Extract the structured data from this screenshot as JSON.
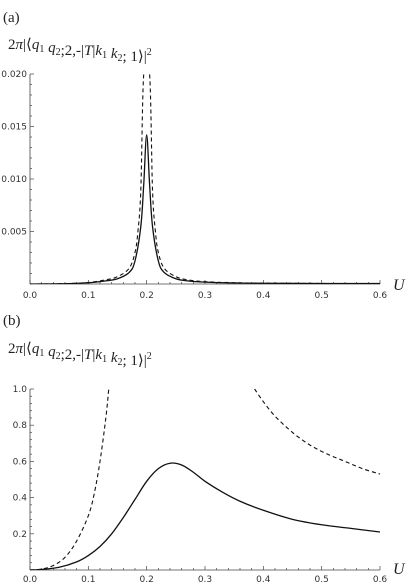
{
  "chart_data": [
    {
      "type": "line",
      "panel_label": "(a)",
      "ylabel": "2π|⟨q₁ q₂;2,-|T|k₁ k₂; 1⟩|²",
      "ylabel_parts": [
        "2",
        "π",
        "|⟨",
        "q",
        "1",
        " ",
        "q",
        "2",
        ";2,-|",
        "T",
        "|",
        "k",
        "1",
        " ",
        "k",
        "2",
        "; 1⟩|",
        "2"
      ],
      "xlabel": "U",
      "xlim": [
        0,
        0.6
      ],
      "ylim": [
        0,
        0.02
      ],
      "xticks": [
        0,
        0.1,
        0.2,
        0.3,
        0.4,
        0.5,
        0.6
      ],
      "xtick_labels": [
        "0.0",
        "0.1",
        "0.2",
        "0.3",
        "0.4",
        "0.5",
        "0.6"
      ],
      "yticks": [
        0.005,
        0.01,
        0.015,
        0.02
      ],
      "ytick_labels": [
        "0.005",
        "0.010",
        "0.015",
        "0.020"
      ],
      "series": [
        {
          "style": "solid",
          "x": [
            0,
            0.05,
            0.1,
            0.13,
            0.15,
            0.17,
            0.18,
            0.19,
            0.195,
            0.2,
            0.205,
            0.21,
            0.22,
            0.23,
            0.25,
            0.27,
            0.3,
            0.35,
            0.4,
            0.5,
            0.6
          ],
          "y": [
            0,
            2e-05,
            0.00012,
            0.0003,
            0.0005,
            0.0011,
            0.0022,
            0.0055,
            0.0095,
            0.0142,
            0.0095,
            0.0055,
            0.0022,
            0.0011,
            0.0005,
            0.0003,
            0.00018,
            0.0001,
            7e-05,
            5e-05,
            4e-05
          ]
        },
        {
          "style": "dashed",
          "x": [
            0,
            0.05,
            0.1,
            0.13,
            0.15,
            0.17,
            0.18,
            0.185,
            0.19,
            0.195,
            0.205,
            0.21,
            0.215,
            0.22,
            0.23,
            0.25,
            0.27,
            0.3,
            0.35,
            0.4,
            0.5,
            0.6
          ],
          "y": [
            0,
            2e-05,
            0.00014,
            0.0004,
            0.0007,
            0.0015,
            0.003,
            0.005,
            0.009,
            0.02,
            0.02,
            0.009,
            0.005,
            0.003,
            0.0015,
            0.0007,
            0.0004,
            0.00022,
            0.00012,
            8e-05,
            5e-05,
            4e-05
          ]
        }
      ]
    },
    {
      "type": "line",
      "panel_label": "(b)",
      "ylabel": "2π|⟨q₁ q₂;2,-|T|k₁ k₂; 1⟩|²",
      "ylabel_parts": [
        "2",
        "π",
        "|⟨",
        "q",
        "1",
        " ",
        "q",
        "2",
        ";2,-|",
        "T",
        "|",
        "k",
        "1",
        " ",
        "k",
        "2",
        "; 1⟩|",
        "2"
      ],
      "xlabel": "U",
      "xlim": [
        0,
        0.6
      ],
      "ylim": [
        0,
        1.0
      ],
      "xticks": [
        0,
        0.1,
        0.2,
        0.3,
        0.4,
        0.5,
        0.6
      ],
      "xtick_labels": [
        "0.0",
        "0.1",
        "0.2",
        "0.3",
        "0.4",
        "0.5",
        "0.6"
      ],
      "yticks": [
        0.2,
        0.4,
        0.6,
        0.8,
        1.0
      ],
      "ytick_labels": [
        "0.2",
        "0.4",
        "0.6",
        "0.8",
        "1.0"
      ],
      "series": [
        {
          "style": "solid",
          "x": [
            0,
            0.02,
            0.05,
            0.08,
            0.1,
            0.12,
            0.14,
            0.16,
            0.18,
            0.2,
            0.22,
            0.24,
            0.26,
            0.28,
            0.3,
            0.33,
            0.36,
            0.4,
            0.45,
            0.5,
            0.55,
            0.6
          ],
          "y": [
            0,
            0.003,
            0.015,
            0.045,
            0.08,
            0.13,
            0.2,
            0.29,
            0.39,
            0.49,
            0.56,
            0.59,
            0.58,
            0.54,
            0.49,
            0.43,
            0.38,
            0.33,
            0.28,
            0.25,
            0.23,
            0.21
          ]
        },
        {
          "style": "dashed",
          "x": [
            0,
            0.02,
            0.04,
            0.06,
            0.08,
            0.1,
            0.11,
            0.12,
            0.13,
            0.135
          ],
          "y": [
            0,
            0.005,
            0.025,
            0.07,
            0.16,
            0.3,
            0.42,
            0.6,
            0.84,
            1.0
          ]
        },
        {
          "style": "dashed",
          "x": [
            0.385,
            0.4,
            0.42,
            0.45,
            0.48,
            0.51,
            0.54,
            0.57,
            0.6
          ],
          "y": [
            1.0,
            0.93,
            0.85,
            0.76,
            0.69,
            0.64,
            0.6,
            0.56,
            0.53
          ]
        }
      ]
    }
  ]
}
